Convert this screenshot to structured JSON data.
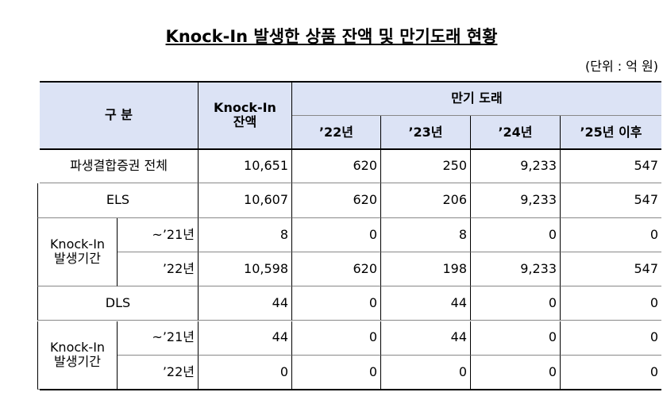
{
  "header": {
    "title": "Knock-In 발생한 상품 잔액 및 만기도래 현황",
    "unit": "(단위 : 억 원)"
  },
  "table": {
    "columns": {
      "category": "구   분",
      "balance": "Knock-In\n잔액",
      "maturity": "만기 도래",
      "years": [
        "’22년",
        "’23년",
        "’24년",
        "’25년 이후"
      ]
    },
    "rows": [
      {
        "label": "파생결합증권 전체",
        "values": [
          "10,651",
          "620",
          "250",
          "9,233",
          "547"
        ]
      },
      {
        "label": "ELS",
        "values": [
          "10,607",
          "620",
          "206",
          "9,233",
          "547"
        ]
      },
      {
        "group": "Knock-In\n발생기간",
        "items": [
          {
            "label": "~’21년",
            "values": [
              "8",
              "0",
              "8",
              "0",
              "0"
            ]
          },
          {
            "label": "’22년",
            "values": [
              "10,598",
              "620",
              "198",
              "9,233",
              "547"
            ]
          }
        ]
      },
      {
        "label": "DLS",
        "values": [
          "44",
          "0",
          "44",
          "0",
          "0"
        ]
      },
      {
        "group": "Knock-In\n발생기간",
        "items": [
          {
            "label": "~’21년",
            "values": [
              "44",
              "0",
              "44",
              "0",
              "0"
            ]
          },
          {
            "label": "’22년",
            "values": [
              "0",
              "0",
              "0",
              "0",
              "0"
            ]
          }
        ]
      }
    ]
  }
}
